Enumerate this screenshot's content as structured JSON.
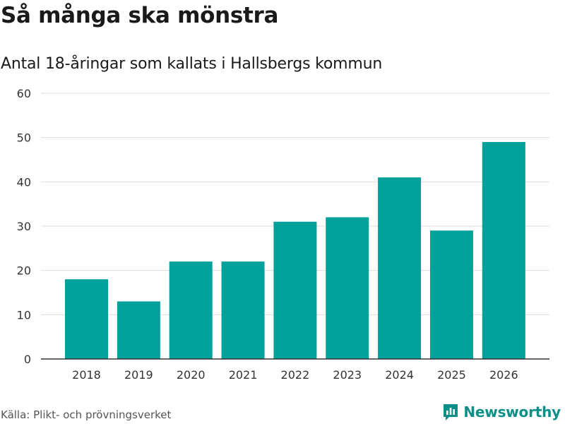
{
  "title": "Så många ska mönstra",
  "subtitle": "Antal 18-åringar som kallats i Hallsbergs kommun",
  "source": "Källa: Plikt- och prövningsverket",
  "brand": {
    "name": "Newsworthy",
    "icon": "newsworthy-logo-icon"
  },
  "colors": {
    "bar": "#00a19a",
    "grid": "#dddddd",
    "axis": "#333333",
    "brand": "#0b8f86"
  },
  "chart_data": {
    "type": "bar",
    "title": "Så många ska mönstra",
    "subtitle": "Antal 18-åringar som kallats i Hallsbergs kommun",
    "categories": [
      "2018",
      "2019",
      "2020",
      "2021",
      "2022",
      "2023",
      "2024",
      "2025",
      "2026"
    ],
    "values": [
      18,
      13,
      22,
      22,
      31,
      32,
      41,
      29,
      49
    ],
    "xlabel": "",
    "ylabel": "",
    "ylim": [
      0,
      60
    ],
    "yticks": [
      0,
      10,
      20,
      30,
      40,
      50,
      60
    ],
    "grid": true,
    "legend": "none"
  }
}
